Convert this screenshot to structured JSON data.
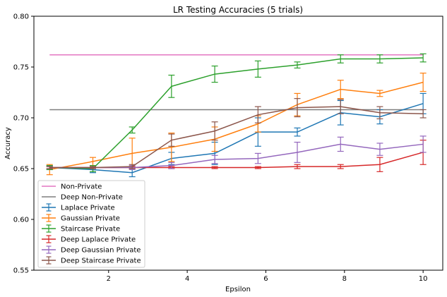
{
  "chart_data": {
    "type": "line",
    "title": "LR Testing Accuracies (5 trials)",
    "xlabel": "Epsilon",
    "ylabel": "Accuracy",
    "xlim": [
      0.1,
      10.5
    ],
    "ylim": [
      0.55,
      0.8
    ],
    "xticks": [
      2,
      4,
      6,
      8,
      10
    ],
    "yticks": [
      0.55,
      0.6,
      0.65,
      0.7,
      0.75,
      0.8
    ],
    "ytick_labels": [
      "0.55",
      "0.60",
      "0.65",
      "0.70",
      "0.75",
      "0.80"
    ],
    "grid": false,
    "legend_position": "lower-left",
    "x": [
      0.5,
      1.6,
      2.6,
      3.6,
      4.7,
      5.8,
      6.8,
      7.9,
      8.9,
      10
    ],
    "baselines": [
      {
        "name": "Non-Private",
        "value": 0.762,
        "color": "#e377c2"
      },
      {
        "name": "Deep Non-Private",
        "value": 0.708,
        "color": "#7f7f7f"
      }
    ],
    "series": [
      {
        "name": "Laplace Private",
        "color": "#1f77b4",
        "values": [
          0.651,
          0.649,
          0.646,
          0.66,
          0.665,
          0.686,
          0.686,
          0.705,
          0.701,
          0.714
        ],
        "errors": [
          0.002,
          0.003,
          0.004,
          0.006,
          0.011,
          0.014,
          0.004,
          0.012,
          0.007,
          0.01
        ]
      },
      {
        "name": "Gaussian Private",
        "color": "#ff7f0e",
        "values": [
          0.649,
          0.657,
          0.665,
          0.671,
          0.679,
          0.694,
          0.713,
          0.728,
          0.724,
          0.735
        ],
        "errors": [
          0.005,
          0.004,
          0.015,
          0.014,
          0.012,
          0.008,
          0.011,
          0.009,
          0.003,
          0.009
        ]
      },
      {
        "name": "Staircase Private",
        "color": "#2ca02c",
        "values": [
          0.651,
          0.65,
          0.688,
          0.731,
          0.743,
          0.748,
          0.752,
          0.758,
          0.758,
          0.759
        ],
        "errors": [
          0.002,
          0.003,
          0.003,
          0.011,
          0.008,
          0.008,
          0.003,
          0.004,
          0.004,
          0.004
        ]
      },
      {
        "name": "Deep Laplace Private",
        "color": "#d62728",
        "values": [
          0.651,
          0.651,
          0.651,
          0.651,
          0.651,
          0.651,
          0.652,
          0.652,
          0.654,
          0.666
        ],
        "errors": [
          0.001,
          0.001,
          0.001,
          0.001,
          0.001,
          0.001,
          0.002,
          0.002,
          0.007,
          0.012
        ]
      },
      {
        "name": "Deep Gaussian Private",
        "color": "#9467bd",
        "values": [
          0.651,
          0.651,
          0.651,
          0.653,
          0.659,
          0.66,
          0.666,
          0.674,
          0.669,
          0.674
        ],
        "errors": [
          0.001,
          0.001,
          0.002,
          0.003,
          0.004,
          0.005,
          0.01,
          0.007,
          0.006,
          0.008
        ]
      },
      {
        "name": "Deep Staircase Private",
        "color": "#8c564b",
        "values": [
          0.651,
          0.651,
          0.652,
          0.678,
          0.687,
          0.703,
          0.71,
          0.711,
          0.705,
          0.704
        ],
        "errors": [
          0.001,
          0.001,
          0.002,
          0.006,
          0.009,
          0.008,
          0.009,
          0.007,
          0.006,
          0.004
        ]
      }
    ]
  }
}
